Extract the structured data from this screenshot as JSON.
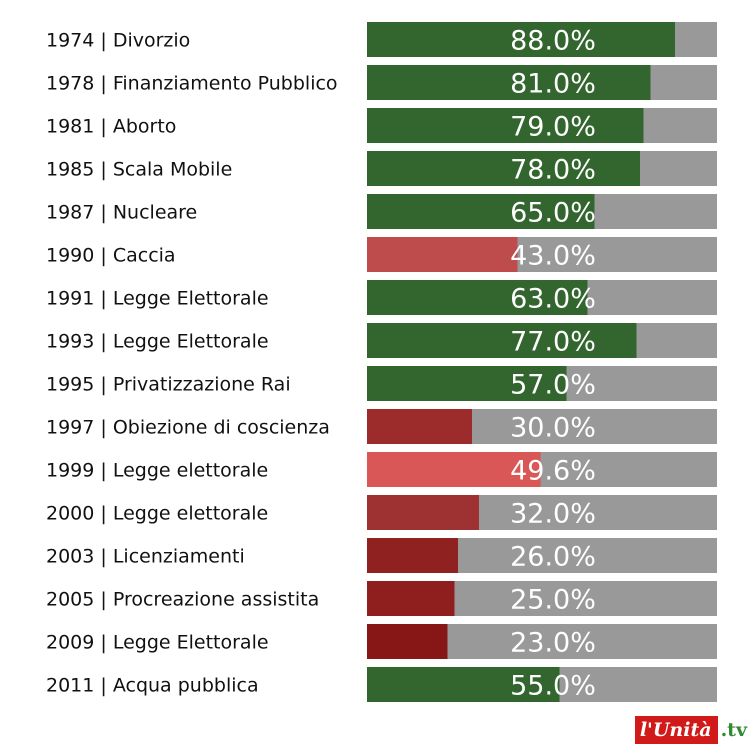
{
  "chart_data": {
    "type": "bar",
    "orientation": "horizontal",
    "xlim": [
      0,
      100
    ],
    "categories": [
      "1974 | Divorzio",
      "1978 | Finanziamento Pubblico",
      "1981 | Aborto",
      "1985 | Scala Mobile",
      "1987 | Nucleare",
      "1990 | Caccia",
      "1991 | Legge Elettorale",
      "1993 | Legge Elettorale",
      "1995 | Privatizzazione Rai",
      "1997 | Obiezione di coscienza",
      "1999 | Legge elettorale",
      "2000 | Legge elettorale",
      "2003 | Licenziamenti",
      "2005 | Procreazione assistita",
      "2009 | Legge Elettorale",
      "2011 | Acqua pubblica"
    ],
    "values": [
      88.0,
      81.0,
      79.0,
      78.0,
      65.0,
      43.0,
      63.0,
      77.0,
      57.0,
      30.0,
      49.6,
      32.0,
      26.0,
      25.0,
      23.0,
      55.0
    ],
    "value_labels": [
      "88.0%",
      "81.0%",
      "79.0%",
      "78.0%",
      "65.0%",
      "43.0%",
      "63.0%",
      "77.0%",
      "57.0%",
      "30.0%",
      "49.6%",
      "32.0%",
      "26.0%",
      "25.0%",
      "23.0%",
      "55.0%"
    ],
    "bar_colors": [
      "#33662f",
      "#33662f",
      "#33662f",
      "#33662f",
      "#33662f",
      "#bf4c4c",
      "#33662f",
      "#33662f",
      "#33662f",
      "#9c2c2c",
      "#d95757",
      "#9e3232",
      "#8f2121",
      "#8f1f1f",
      "#871717",
      "#33662f"
    ],
    "track_color": "#999999",
    "grid": false
  },
  "logo": {
    "main": "l'Unità",
    "suffix": ".tv",
    "colors": {
      "main_bg": "#d11a1a",
      "suffix": "#2f8a2f"
    }
  }
}
